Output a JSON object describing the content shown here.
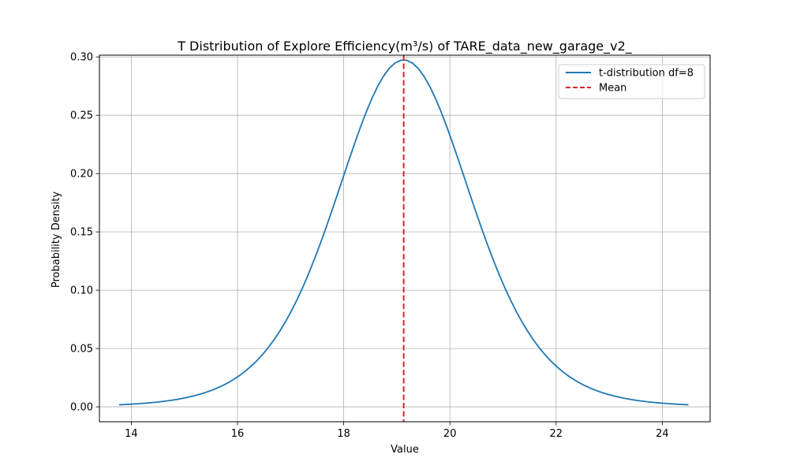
{
  "chart_data": {
    "type": "line",
    "title": "T Distribution of Explore Efficiency(m³/s) of TARE_data_new_garage_v2_",
    "xlabel": "Value",
    "ylabel": "Probability Density",
    "xlim": [
      13.4,
      24.9
    ],
    "ylim": [
      -0.0128,
      0.3015
    ],
    "xticks": [
      14,
      16,
      18,
      20,
      22,
      24
    ],
    "yticks": [
      0.0,
      0.05,
      0.1,
      0.15,
      0.2,
      0.25,
      0.3
    ],
    "xtick_labels": [
      "14",
      "16",
      "18",
      "20",
      "22",
      "24"
    ],
    "ytick_labels": [
      "0.00",
      "0.05",
      "0.10",
      "0.15",
      "0.20",
      "0.25",
      "0.30"
    ],
    "grid": true,
    "legend_position": "top-right",
    "series": [
      {
        "name": "t-distribution df=8",
        "color": "#1f77b4",
        "style": "solid",
        "df": 8,
        "loc": 19.13,
        "scale": 1.3,
        "x_range": [
          13.77,
          24.49
        ]
      },
      {
        "name": "Mean",
        "color": "#d62728",
        "style": "dashed",
        "x": 19.13
      }
    ]
  }
}
